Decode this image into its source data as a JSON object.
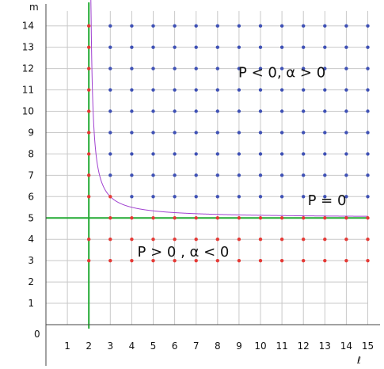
{
  "chart_data": {
    "type": "scatter",
    "title": "",
    "xlabel": "ℓ",
    "ylabel": "m",
    "xlim": [
      0,
      15
    ],
    "ylim": [
      0,
      14.7
    ],
    "x_ticks": [
      "1",
      "2",
      "3",
      "4",
      "5",
      "6",
      "7",
      "8",
      "9",
      "10",
      "11",
      "12",
      "13",
      "14",
      "15"
    ],
    "y_ticks": [
      "1",
      "2",
      "3",
      "4",
      "5",
      "6",
      "7",
      "8",
      "9",
      "10",
      "11",
      "12",
      "13",
      "14"
    ],
    "origin_label": "0",
    "grid": true,
    "lattice": {
      "l_values": [
        2,
        3,
        4,
        5,
        6,
        7,
        8,
        9,
        10,
        11,
        12,
        13,
        14,
        15
      ],
      "m_values": [
        3,
        4,
        5,
        6,
        7,
        8,
        9,
        10,
        11,
        12,
        13,
        14
      ]
    },
    "series": [
      {
        "name": "P > 0 , α < 0",
        "color": "#e53935"
      },
      {
        "name": "P < 0,  α > 0",
        "color": "#3f51b5"
      }
    ],
    "reference_lines": [
      {
        "orientation": "vertical",
        "x": 2,
        "color": "#22aa33"
      },
      {
        "orientation": "horizontal",
        "y": 5,
        "color": "#22aa33"
      }
    ],
    "curve": {
      "label": "P  = 0",
      "equation": "m = 5 + 1/(ℓ - 2)",
      "color": "#a040d0"
    },
    "annotations": [
      {
        "text": "P < 0,  α > 0",
        "x": 11,
        "y": 11.6
      },
      {
        "text": "P  = 0",
        "x": 13.1,
        "y": 5.6
      },
      {
        "text": "P  > 0 , α < 0",
        "x": 6.4,
        "y": 3.2
      }
    ]
  }
}
